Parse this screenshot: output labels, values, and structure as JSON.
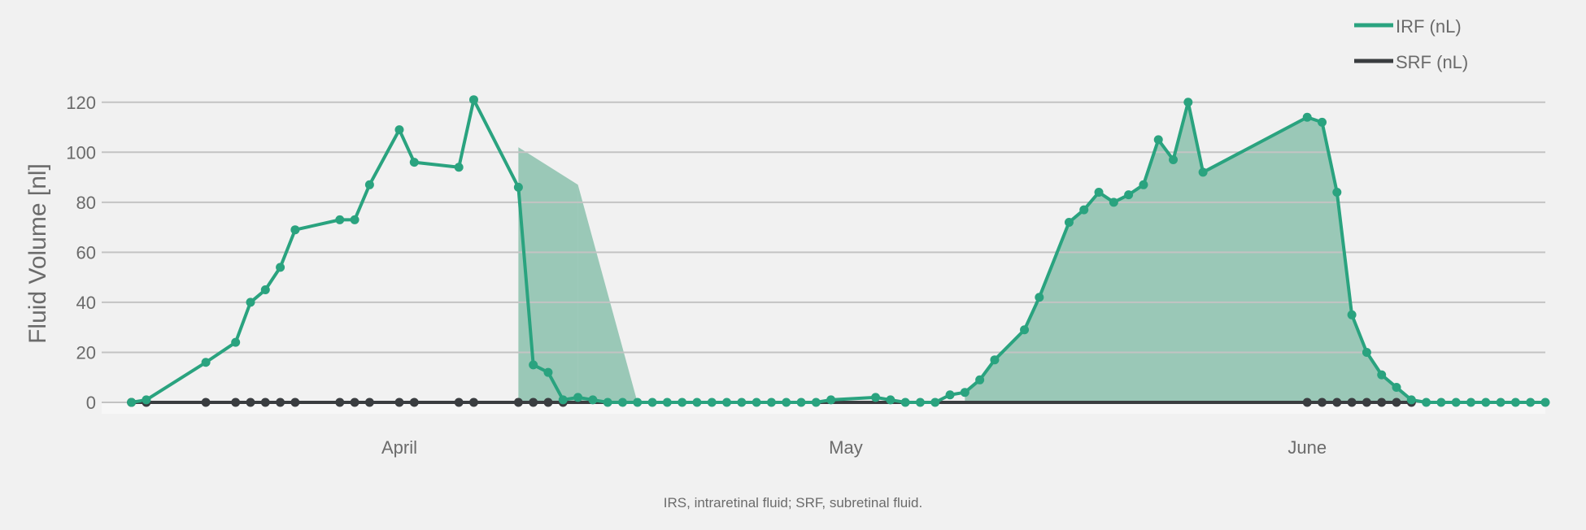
{
  "chart_data": {
    "type": "line",
    "ylabel": "Fluid Volume [nl]",
    "xlabel": "",
    "ylim": [
      0,
      130
    ],
    "y_ticks": [
      "0",
      "20",
      "40",
      "60",
      "80",
      "100",
      "120"
    ],
    "x_tick_labels": [
      "April",
      "May",
      "June"
    ],
    "grid": "horizontal",
    "legend_position": "top-right",
    "caption": "IRS, intraretinal fluid; SRF, subretinal fluid.",
    "colors": {
      "IRF": "#2aa37f",
      "SRF": "#3a3d40",
      "fill": "#9ac8b7",
      "grid": "#c3c3c3",
      "background": "#f1f1f1"
    },
    "x_range": [
      "2023-03-26",
      "2023-07-01"
    ],
    "shaded_intervals": [
      {
        "from": "2023-04-23",
        "to": "2023-04-27",
        "values": [
          102,
          87
        ]
      },
      {
        "from": "2023-04-27",
        "to": "2023-05-01",
        "values": [
          87,
          0
        ]
      },
      {
        "from": "2023-05-23",
        "to": "2023-06-22",
        "source": "IRF"
      }
    ],
    "series": [
      {
        "name": "IRF (nL)",
        "points": [
          [
            "2023-03-28",
            0
          ],
          [
            "2023-03-29",
            1
          ],
          [
            "2023-04-02",
            16
          ],
          [
            "2023-04-04",
            24
          ],
          [
            "2023-04-05",
            40
          ],
          [
            "2023-04-06",
            45
          ],
          [
            "2023-04-07",
            54
          ],
          [
            "2023-04-08",
            69
          ],
          [
            "2023-04-11",
            73
          ],
          [
            "2023-04-12",
            73
          ],
          [
            "2023-04-13",
            87
          ],
          [
            "2023-04-15",
            109
          ],
          [
            "2023-04-16",
            96
          ],
          [
            "2023-04-19",
            94
          ],
          [
            "2023-04-20",
            121
          ],
          [
            "2023-04-23",
            86
          ],
          [
            "2023-04-24",
            15
          ],
          [
            "2023-04-25",
            12
          ],
          [
            "2023-04-26",
            1
          ],
          [
            "2023-04-27",
            2
          ],
          [
            "2023-04-28",
            1
          ],
          [
            "2023-04-29",
            0
          ],
          [
            "2023-04-30",
            0
          ],
          [
            "2023-05-01",
            0
          ],
          [
            "2023-05-02",
            0
          ],
          [
            "2023-05-03",
            0
          ],
          [
            "2023-05-04",
            0
          ],
          [
            "2023-05-05",
            0
          ],
          [
            "2023-05-06",
            0
          ],
          [
            "2023-05-07",
            0
          ],
          [
            "2023-05-08",
            0
          ],
          [
            "2023-05-09",
            0
          ],
          [
            "2023-05-10",
            0
          ],
          [
            "2023-05-11",
            0
          ],
          [
            "2023-05-12",
            0
          ],
          [
            "2023-05-13",
            0
          ],
          [
            "2023-05-14",
            1
          ],
          [
            "2023-05-17",
            2
          ],
          [
            "2023-05-18",
            1
          ],
          [
            "2023-05-19",
            0
          ],
          [
            "2023-05-20",
            0
          ],
          [
            "2023-05-21",
            0
          ],
          [
            "2023-05-22",
            3
          ],
          [
            "2023-05-23",
            4
          ],
          [
            "2023-05-24",
            9
          ],
          [
            "2023-05-25",
            17
          ],
          [
            "2023-05-27",
            29
          ],
          [
            "2023-05-28",
            42
          ],
          [
            "2023-05-30",
            72
          ],
          [
            "2023-05-31",
            77
          ],
          [
            "2023-06-01",
            84
          ],
          [
            "2023-06-02",
            80
          ],
          [
            "2023-06-03",
            83
          ],
          [
            "2023-06-04",
            87
          ],
          [
            "2023-06-05",
            105
          ],
          [
            "2023-06-06",
            97
          ],
          [
            "2023-06-07",
            120
          ],
          [
            "2023-06-08",
            92
          ],
          [
            "2023-06-15",
            114
          ],
          [
            "2023-06-16",
            112
          ],
          [
            "2023-06-17",
            84
          ],
          [
            "2023-06-18",
            35
          ],
          [
            "2023-06-19",
            20
          ],
          [
            "2023-06-20",
            11
          ],
          [
            "2023-06-21",
            6
          ],
          [
            "2023-06-22",
            1
          ],
          [
            "2023-06-23",
            0
          ],
          [
            "2023-06-24",
            0
          ],
          [
            "2023-06-25",
            0
          ],
          [
            "2023-06-26",
            0
          ],
          [
            "2023-06-27",
            0
          ],
          [
            "2023-06-28",
            0
          ],
          [
            "2023-06-29",
            0
          ],
          [
            "2023-06-30",
            0
          ],
          [
            "2023-07-01",
            0
          ]
        ]
      },
      {
        "name": "SRF (nL)",
        "points": [
          [
            "2023-03-28",
            0
          ],
          [
            "2023-03-29",
            0
          ],
          [
            "2023-04-02",
            0
          ],
          [
            "2023-04-04",
            0
          ],
          [
            "2023-04-05",
            0
          ],
          [
            "2023-04-06",
            0
          ],
          [
            "2023-04-07",
            0
          ],
          [
            "2023-04-08",
            0
          ],
          [
            "2023-04-11",
            0
          ],
          [
            "2023-04-12",
            0
          ],
          [
            "2023-04-13",
            0
          ],
          [
            "2023-04-15",
            0
          ],
          [
            "2023-04-16",
            0
          ],
          [
            "2023-04-19",
            0
          ],
          [
            "2023-04-20",
            0
          ],
          [
            "2023-04-23",
            0
          ],
          [
            "2023-04-24",
            0
          ],
          [
            "2023-04-25",
            0
          ],
          [
            "2023-04-26",
            0
          ],
          [
            "2023-06-15",
            0
          ],
          [
            "2023-06-16",
            0
          ],
          [
            "2023-06-17",
            0
          ],
          [
            "2023-06-18",
            0
          ],
          [
            "2023-06-19",
            0
          ],
          [
            "2023-06-20",
            0
          ],
          [
            "2023-06-21",
            0
          ],
          [
            "2023-06-22",
            0
          ]
        ]
      }
    ]
  }
}
